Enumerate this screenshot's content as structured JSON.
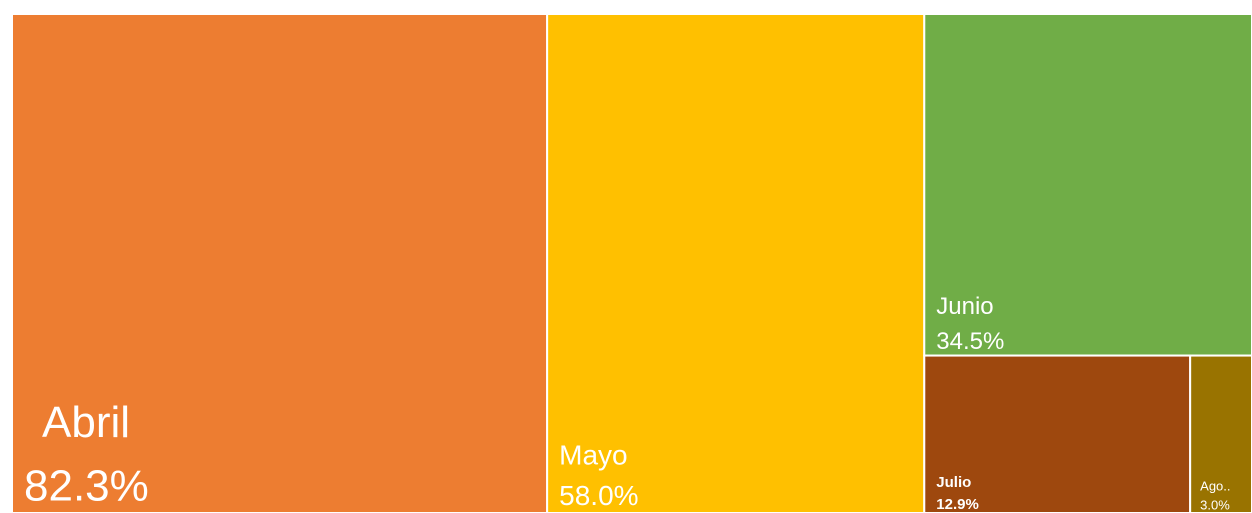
{
  "chart_data": {
    "type": "treemap",
    "categories": [
      "Abril",
      "Mayo",
      "Junio",
      "Julio",
      "Ago.."
    ],
    "values": [
      82.3,
      58.0,
      34.5,
      12.9,
      3.0
    ],
    "value_labels": [
      "82.3%",
      "58.0%",
      "34.5%",
      "12.9%",
      "3.0%"
    ],
    "colors": [
      "#ED7D31",
      "#FFC000",
      "#70AD47",
      "#9E480E",
      "#997300"
    ]
  }
}
